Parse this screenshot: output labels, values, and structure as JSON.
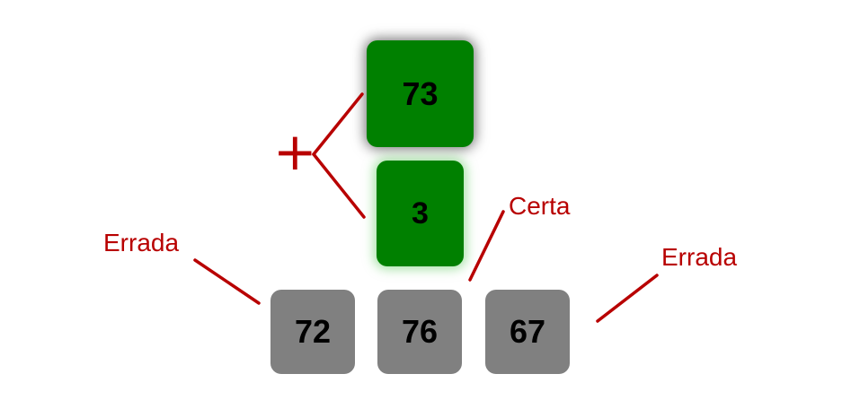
{
  "operation": {
    "symbol": "+",
    "color": "#b80000"
  },
  "operands": {
    "first": "73",
    "second": "3",
    "color": "#008000"
  },
  "answers": {
    "options": [
      "72",
      "76",
      "67"
    ],
    "tile_color": "#808080"
  },
  "annotations": {
    "wrong_left": "Errada",
    "correct": "Certa",
    "wrong_right": "Errada"
  }
}
